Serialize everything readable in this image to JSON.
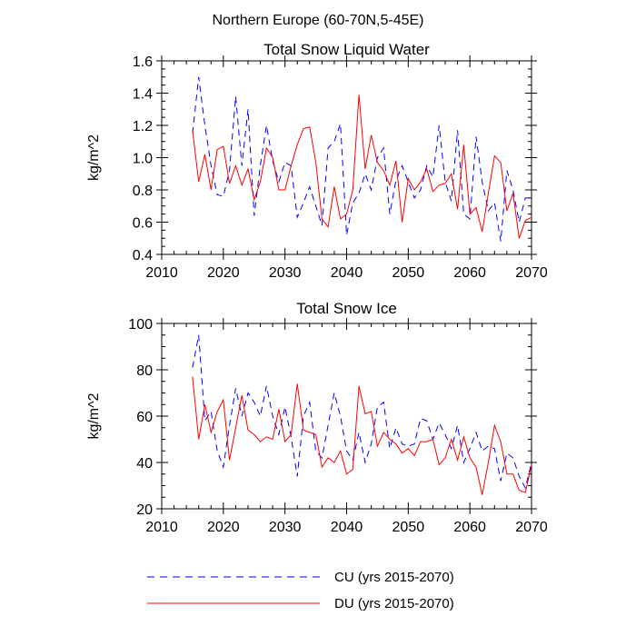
{
  "suptitle": "Northern Europe (60-70N,5-45E)",
  "legend": {
    "cu_label": "CU (yrs 2015-2070)",
    "du_label": "DU (yrs 2015-2070)",
    "cu_color": "#0000ff",
    "du_color": "#ff0000"
  },
  "chart_data": [
    {
      "type": "line",
      "title": "Total Snow Liquid Water",
      "xlabel": "",
      "ylabel": "kg/m^2",
      "xlim": [
        2010,
        2070
      ],
      "ylim": [
        0.4,
        1.6
      ],
      "xticks": [
        2010,
        2020,
        2030,
        2040,
        2050,
        2060,
        2070
      ],
      "xtick_labels": [
        "2010",
        "2020",
        "2030",
        "2040",
        "2050",
        "2060",
        "2070"
      ],
      "yticks": [
        0.4,
        0.6,
        0.8,
        1.0,
        1.2,
        1.4,
        1.6
      ],
      "ytick_labels": [
        "0.4",
        "0.6",
        "0.8",
        "1.0",
        "1.2",
        "1.4",
        "1.6"
      ],
      "x": [
        2015,
        2016,
        2017,
        2018,
        2019,
        2020,
        2021,
        2022,
        2023,
        2024,
        2025,
        2026,
        2027,
        2028,
        2029,
        2030,
        2031,
        2032,
        2033,
        2034,
        2035,
        2036,
        2037,
        2038,
        2039,
        2040,
        2041,
        2042,
        2043,
        2044,
        2045,
        2046,
        2047,
        2048,
        2049,
        2050,
        2051,
        2052,
        2053,
        2054,
        2055,
        2056,
        2057,
        2058,
        2059,
        2060,
        2061,
        2062,
        2063,
        2064,
        2065,
        2066,
        2067,
        2068,
        2069,
        2070
      ],
      "series": [
        {
          "name": "CU (yrs 2015-2070)",
          "color": "#0000ff",
          "dash": "dashed",
          "values": [
            1.15,
            1.5,
            1.2,
            0.95,
            0.77,
            0.76,
            0.92,
            1.38,
            0.95,
            1.3,
            0.64,
            0.95,
            1.2,
            0.98,
            0.85,
            0.97,
            0.95,
            0.63,
            0.72,
            0.82,
            0.7,
            0.58,
            1.06,
            1.1,
            1.21,
            0.52,
            0.72,
            0.78,
            0.9,
            0.8,
            1.0,
            1.06,
            0.65,
            0.86,
            0.95,
            0.85,
            0.75,
            0.8,
            0.95,
            0.88,
            1.2,
            0.85,
            0.73,
            1.17,
            0.65,
            0.62,
            1.13,
            0.85,
            0.67,
            0.72,
            0.48,
            0.92,
            0.8,
            0.6,
            0.75,
            0.75
          ]
        },
        {
          "name": "DU (yrs 2015-2070)",
          "color": "#ff0000",
          "dash": "solid",
          "values": [
            1.17,
            0.85,
            1.02,
            0.8,
            1.05,
            1.07,
            0.84,
            0.95,
            0.83,
            0.93,
            0.74,
            0.85,
            1.06,
            1.0,
            0.8,
            0.8,
            0.95,
            1.08,
            1.18,
            1.19,
            0.97,
            0.62,
            0.57,
            0.82,
            0.62,
            0.65,
            0.8,
            1.39,
            0.93,
            1.14,
            0.97,
            0.92,
            0.83,
            0.98,
            0.6,
            0.87,
            0.8,
            0.85,
            0.93,
            0.79,
            0.83,
            0.84,
            0.9,
            0.68,
            1.08,
            0.65,
            0.69,
            0.54,
            0.78,
            1.01,
            0.97,
            0.67,
            0.78,
            0.5,
            0.61,
            0.63
          ]
        }
      ]
    },
    {
      "type": "line",
      "title": "Total Snow Ice",
      "xlabel": "",
      "ylabel": "kg/m^2",
      "xlim": [
        2010,
        2070
      ],
      "ylim": [
        20,
        100
      ],
      "xticks": [
        2010,
        2020,
        2030,
        2040,
        2050,
        2060,
        2070
      ],
      "xtick_labels": [
        "2010",
        "2020",
        "2030",
        "2040",
        "2050",
        "2060",
        "2070"
      ],
      "yticks": [
        20,
        40,
        60,
        80,
        100
      ],
      "ytick_labels": [
        "20",
        "40",
        "60",
        "80",
        "100"
      ],
      "x": [
        2015,
        2016,
        2017,
        2018,
        2019,
        2020,
        2021,
        2022,
        2023,
        2024,
        2025,
        2026,
        2027,
        2028,
        2029,
        2030,
        2031,
        2032,
        2033,
        2034,
        2035,
        2036,
        2037,
        2038,
        2039,
        2040,
        2041,
        2042,
        2043,
        2044,
        2045,
        2046,
        2047,
        2048,
        2049,
        2050,
        2051,
        2052,
        2053,
        2054,
        2055,
        2056,
        2057,
        2058,
        2059,
        2060,
        2061,
        2062,
        2063,
        2064,
        2065,
        2066,
        2067,
        2068,
        2069,
        2070
      ],
      "series": [
        {
          "name": "CU (yrs 2015-2070)",
          "color": "#0000ff",
          "dash": "dashed",
          "values": [
            81,
            95,
            58,
            62,
            45,
            38,
            56,
            72,
            60,
            70,
            66,
            60,
            73,
            60,
            52,
            64,
            51,
            34,
            60,
            66,
            45,
            42,
            56,
            70,
            60,
            45,
            41,
            53,
            40,
            48,
            64,
            66,
            46,
            55,
            48,
            47,
            48,
            59,
            58,
            50,
            57,
            52,
            46,
            56,
            40,
            46,
            53,
            45,
            47,
            46,
            32,
            44,
            42,
            34,
            29,
            40
          ]
        },
        {
          "name": "DU (yrs 2015-2070)",
          "color": "#ff0000",
          "dash": "solid",
          "values": [
            77,
            50,
            65,
            53,
            62,
            67,
            41,
            55,
            69,
            54,
            52,
            49,
            51,
            50,
            63,
            49,
            52,
            74,
            54,
            53,
            52,
            38,
            42,
            40,
            45,
            35,
            37,
            73,
            61,
            62,
            47,
            53,
            50,
            48,
            44,
            46,
            43,
            49,
            49,
            50,
            39,
            42,
            50,
            41,
            51,
            42,
            38,
            26,
            40,
            56,
            49,
            35,
            35,
            28,
            27,
            39
          ]
        }
      ]
    }
  ]
}
